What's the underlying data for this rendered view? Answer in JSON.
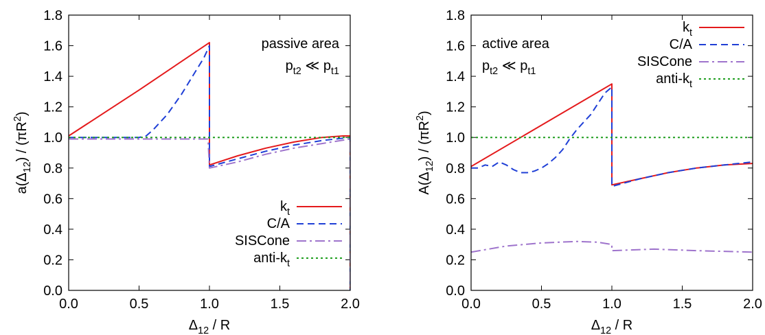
{
  "chart_data": [
    {
      "type": "line",
      "panel": "left",
      "annotation_line1": "passive area",
      "annotation_line2": "p<sub>t2</sub> ≪ p<sub>t1</sub>",
      "xlabel": "Δ<sub>12</sub> / R",
      "ylabel": "a(Δ<sub>12</sub>) / (πR<sup>2</sup>)",
      "xlim": [
        0,
        2
      ],
      "ylim": [
        0,
        1.8
      ],
      "xticks": [
        0.0,
        0.5,
        1.0,
        1.5,
        2.0
      ],
      "xtick_labels": [
        "0.0",
        "0.5",
        "1.0",
        "1.5",
        "2.0"
      ],
      "yticks": [
        0.0,
        0.2,
        0.4,
        0.6,
        0.8,
        1.0,
        1.2,
        1.4,
        1.6,
        1.8
      ],
      "ytick_labels": [
        "0.0",
        "0.2",
        "0.4",
        "0.6",
        "0.8",
        "1.0",
        "1.2",
        "1.4",
        "1.6",
        "1.8"
      ],
      "legend_position": "bottom-right",
      "series": [
        {
          "name": "k<sub>t</sub>",
          "color": "#e41a1c",
          "dash": "",
          "width": 2,
          "x": [
            0,
            0.5,
            1.0,
            1.0,
            1.2,
            1.4,
            1.6,
            1.8,
            1.95,
            2.0,
            2.0
          ],
          "y": [
            1.01,
            1.31,
            1.62,
            0.82,
            0.88,
            0.93,
            0.97,
            1.0,
            1.01,
            1.01,
            0.0
          ]
        },
        {
          "name": "C/A",
          "color": "#1f3fd6",
          "dash": "10,6",
          "width": 2,
          "x": [
            0,
            0.5,
            0.55,
            0.6,
            0.7,
            0.8,
            0.9,
            0.96,
            1.0,
            1.0,
            1.2,
            1.4,
            1.6,
            1.8,
            2.0,
            2.0
          ],
          "y": [
            1.0,
            1.0,
            1.01,
            1.05,
            1.15,
            1.28,
            1.43,
            1.52,
            1.6,
            0.81,
            0.86,
            0.91,
            0.95,
            0.98,
            1.0,
            0.0
          ]
        },
        {
          "name": "SISCone",
          "color": "#9e73cc",
          "dash": "14,5,3,5",
          "width": 2,
          "x": [
            0,
            0.5,
            0.99,
            1.0,
            1.2,
            1.4,
            1.6,
            1.8,
            2.0,
            2.0
          ],
          "y": [
            0.99,
            0.99,
            0.99,
            0.8,
            0.84,
            0.89,
            0.93,
            0.96,
            0.99,
            0.0
          ]
        },
        {
          "name": "anti-k<sub>t</sub>",
          "color": "#1e9e1e",
          "dash": "3,4",
          "width": 2,
          "x": [
            0,
            2.0
          ],
          "y": [
            1.0,
            1.0
          ]
        }
      ]
    },
    {
      "type": "line",
      "panel": "right",
      "annotation_line1": "active area",
      "annotation_line2": "p<sub>t2</sub> ≪ p<sub>t1</sub>",
      "xlabel": "Δ<sub>12</sub> / R",
      "ylabel": "A(Δ<sub>12</sub>) / (πR<sup>2</sup>)",
      "xlim": [
        0,
        2
      ],
      "ylim": [
        0,
        1.8
      ],
      "xticks": [
        0.0,
        0.5,
        1.0,
        1.5,
        2.0
      ],
      "xtick_labels": [
        "0.0",
        "0.5",
        "1.0",
        "1.5",
        "2.0"
      ],
      "yticks": [
        0.0,
        0.2,
        0.4,
        0.6,
        0.8,
        1.0,
        1.2,
        1.4,
        1.6,
        1.8
      ],
      "ytick_labels": [
        "0.0",
        "0.2",
        "0.4",
        "0.6",
        "0.8",
        "1.0",
        "1.2",
        "1.4",
        "1.6",
        "1.8"
      ],
      "legend_position": "top-right",
      "series": [
        {
          "name": "k<sub>t</sub>",
          "color": "#e41a1c",
          "dash": "",
          "width": 2,
          "x": [
            0,
            0.5,
            1.0,
            1.0,
            1.2,
            1.4,
            1.6,
            1.8,
            2.0
          ],
          "y": [
            0.81,
            1.08,
            1.35,
            0.69,
            0.73,
            0.77,
            0.8,
            0.82,
            0.83
          ]
        },
        {
          "name": "C/A",
          "color": "#1f3fd6",
          "dash": "10,6",
          "width": 2,
          "x": [
            0,
            0.05,
            0.1,
            0.15,
            0.2,
            0.25,
            0.3,
            0.35,
            0.4,
            0.45,
            0.5,
            0.55,
            0.6,
            0.65,
            0.7,
            0.75,
            0.8,
            0.85,
            0.9,
            0.95,
            1.0,
            1.0,
            1.2,
            1.4,
            1.6,
            1.8,
            2.0
          ],
          "y": [
            0.8,
            0.8,
            0.82,
            0.81,
            0.84,
            0.82,
            0.79,
            0.77,
            0.77,
            0.78,
            0.8,
            0.83,
            0.87,
            0.92,
            0.99,
            1.05,
            1.1,
            1.15,
            1.22,
            1.29,
            1.33,
            0.68,
            0.73,
            0.77,
            0.8,
            0.82,
            0.84
          ]
        },
        {
          "name": "SISCone",
          "color": "#9e73cc",
          "dash": "14,5,3,5",
          "width": 2,
          "x": [
            0,
            0.25,
            0.5,
            0.75,
            0.9,
            1.0,
            1.0,
            1.3,
            1.6,
            2.0
          ],
          "y": [
            0.25,
            0.29,
            0.31,
            0.32,
            0.315,
            0.3,
            0.26,
            0.27,
            0.26,
            0.25
          ]
        },
        {
          "name": "anti-k<sub>t</sub>",
          "color": "#1e9e1e",
          "dash": "3,4",
          "width": 2,
          "x": [
            0,
            2.0
          ],
          "y": [
            1.0,
            1.0
          ]
        }
      ]
    }
  ]
}
